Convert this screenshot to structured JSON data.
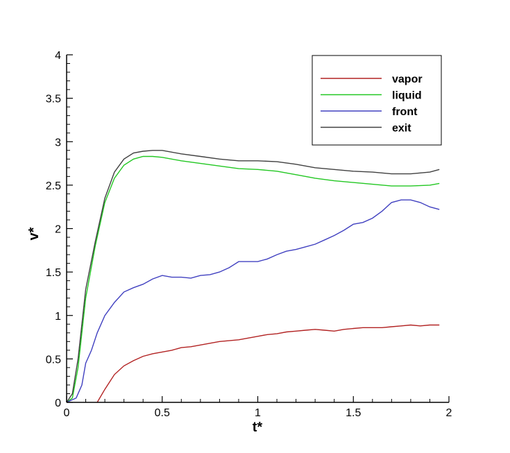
{
  "chart_data": {
    "type": "line",
    "xlabel": "t*",
    "ylabel": "v*",
    "xlim": [
      0,
      2
    ],
    "ylim": [
      0,
      4
    ],
    "x_ticks": [
      0,
      0.5,
      1,
      1.5,
      2
    ],
    "x_tick_labels": [
      "0",
      "0.5",
      "1",
      "1.5",
      "2"
    ],
    "y_ticks": [
      0,
      0.5,
      1,
      1.5,
      2,
      2.5,
      3,
      3.5,
      4
    ],
    "y_tick_labels": [
      "0",
      "0.5",
      "1",
      "1.5",
      "2",
      "2.5",
      "3",
      "3.5",
      "4"
    ],
    "grid": false,
    "legend_position": "top-right",
    "series": [
      {
        "name": "vapor",
        "color": "#b22222",
        "points": [
          [
            0.16,
            0.0
          ],
          [
            0.2,
            0.15
          ],
          [
            0.25,
            0.32
          ],
          [
            0.3,
            0.42
          ],
          [
            0.35,
            0.48
          ],
          [
            0.4,
            0.53
          ],
          [
            0.45,
            0.56
          ],
          [
            0.5,
            0.58
          ],
          [
            0.55,
            0.6
          ],
          [
            0.6,
            0.63
          ],
          [
            0.65,
            0.64
          ],
          [
            0.7,
            0.66
          ],
          [
            0.75,
            0.68
          ],
          [
            0.8,
            0.7
          ],
          [
            0.85,
            0.71
          ],
          [
            0.9,
            0.72
          ],
          [
            0.95,
            0.74
          ],
          [
            1.0,
            0.76
          ],
          [
            1.05,
            0.78
          ],
          [
            1.1,
            0.79
          ],
          [
            1.15,
            0.81
          ],
          [
            1.2,
            0.82
          ],
          [
            1.25,
            0.83
          ],
          [
            1.3,
            0.84
          ],
          [
            1.35,
            0.83
          ],
          [
            1.4,
            0.82
          ],
          [
            1.45,
            0.84
          ],
          [
            1.5,
            0.85
          ],
          [
            1.55,
            0.86
          ],
          [
            1.6,
            0.86
          ],
          [
            1.65,
            0.86
          ],
          [
            1.7,
            0.87
          ],
          [
            1.75,
            0.88
          ],
          [
            1.8,
            0.89
          ],
          [
            1.85,
            0.88
          ],
          [
            1.9,
            0.89
          ],
          [
            1.95,
            0.89
          ]
        ]
      },
      {
        "name": "liquid",
        "color": "#22c722",
        "points": [
          [
            0.0,
            0.0
          ],
          [
            0.03,
            0.05
          ],
          [
            0.06,
            0.4
          ],
          [
            0.1,
            1.2
          ],
          [
            0.15,
            1.8
          ],
          [
            0.2,
            2.3
          ],
          [
            0.25,
            2.58
          ],
          [
            0.3,
            2.73
          ],
          [
            0.35,
            2.8
          ],
          [
            0.4,
            2.83
          ],
          [
            0.45,
            2.83
          ],
          [
            0.5,
            2.82
          ],
          [
            0.6,
            2.78
          ],
          [
            0.7,
            2.75
          ],
          [
            0.8,
            2.72
          ],
          [
            0.9,
            2.69
          ],
          [
            1.0,
            2.68
          ],
          [
            1.1,
            2.66
          ],
          [
            1.2,
            2.62
          ],
          [
            1.3,
            2.58
          ],
          [
            1.4,
            2.55
          ],
          [
            1.5,
            2.53
          ],
          [
            1.6,
            2.51
          ],
          [
            1.7,
            2.49
          ],
          [
            1.8,
            2.49
          ],
          [
            1.9,
            2.5
          ],
          [
            1.95,
            2.52
          ]
        ]
      },
      {
        "name": "front",
        "color": "#4040c0",
        "points": [
          [
            0.0,
            0.0
          ],
          [
            0.05,
            0.05
          ],
          [
            0.08,
            0.2
          ],
          [
            0.1,
            0.45
          ],
          [
            0.13,
            0.6
          ],
          [
            0.16,
            0.8
          ],
          [
            0.2,
            1.0
          ],
          [
            0.25,
            1.15
          ],
          [
            0.3,
            1.27
          ],
          [
            0.35,
            1.32
          ],
          [
            0.4,
            1.36
          ],
          [
            0.45,
            1.42
          ],
          [
            0.5,
            1.46
          ],
          [
            0.55,
            1.44
          ],
          [
            0.6,
            1.44
          ],
          [
            0.65,
            1.43
          ],
          [
            0.7,
            1.46
          ],
          [
            0.75,
            1.47
          ],
          [
            0.8,
            1.5
          ],
          [
            0.85,
            1.55
          ],
          [
            0.9,
            1.62
          ],
          [
            0.95,
            1.62
          ],
          [
            1.0,
            1.62
          ],
          [
            1.05,
            1.65
          ],
          [
            1.1,
            1.7
          ],
          [
            1.15,
            1.74
          ],
          [
            1.2,
            1.76
          ],
          [
            1.25,
            1.79
          ],
          [
            1.3,
            1.82
          ],
          [
            1.35,
            1.87
          ],
          [
            1.4,
            1.92
          ],
          [
            1.45,
            1.98
          ],
          [
            1.5,
            2.05
          ],
          [
            1.55,
            2.07
          ],
          [
            1.6,
            2.12
          ],
          [
            1.65,
            2.2
          ],
          [
            1.7,
            2.3
          ],
          [
            1.75,
            2.33
          ],
          [
            1.8,
            2.33
          ],
          [
            1.85,
            2.3
          ],
          [
            1.9,
            2.25
          ],
          [
            1.95,
            2.22
          ]
        ]
      },
      {
        "name": "exit",
        "color": "#404040",
        "points": [
          [
            0.0,
            0.0
          ],
          [
            0.03,
            0.1
          ],
          [
            0.06,
            0.5
          ],
          [
            0.1,
            1.3
          ],
          [
            0.15,
            1.85
          ],
          [
            0.2,
            2.35
          ],
          [
            0.25,
            2.65
          ],
          [
            0.3,
            2.8
          ],
          [
            0.35,
            2.87
          ],
          [
            0.4,
            2.89
          ],
          [
            0.45,
            2.9
          ],
          [
            0.5,
            2.9
          ],
          [
            0.6,
            2.86
          ],
          [
            0.7,
            2.83
          ],
          [
            0.8,
            2.8
          ],
          [
            0.9,
            2.78
          ],
          [
            1.0,
            2.78
          ],
          [
            1.1,
            2.77
          ],
          [
            1.2,
            2.74
          ],
          [
            1.3,
            2.7
          ],
          [
            1.4,
            2.68
          ],
          [
            1.5,
            2.66
          ],
          [
            1.6,
            2.65
          ],
          [
            1.7,
            2.63
          ],
          [
            1.8,
            2.63
          ],
          [
            1.9,
            2.65
          ],
          [
            1.95,
            2.68
          ]
        ]
      }
    ]
  }
}
